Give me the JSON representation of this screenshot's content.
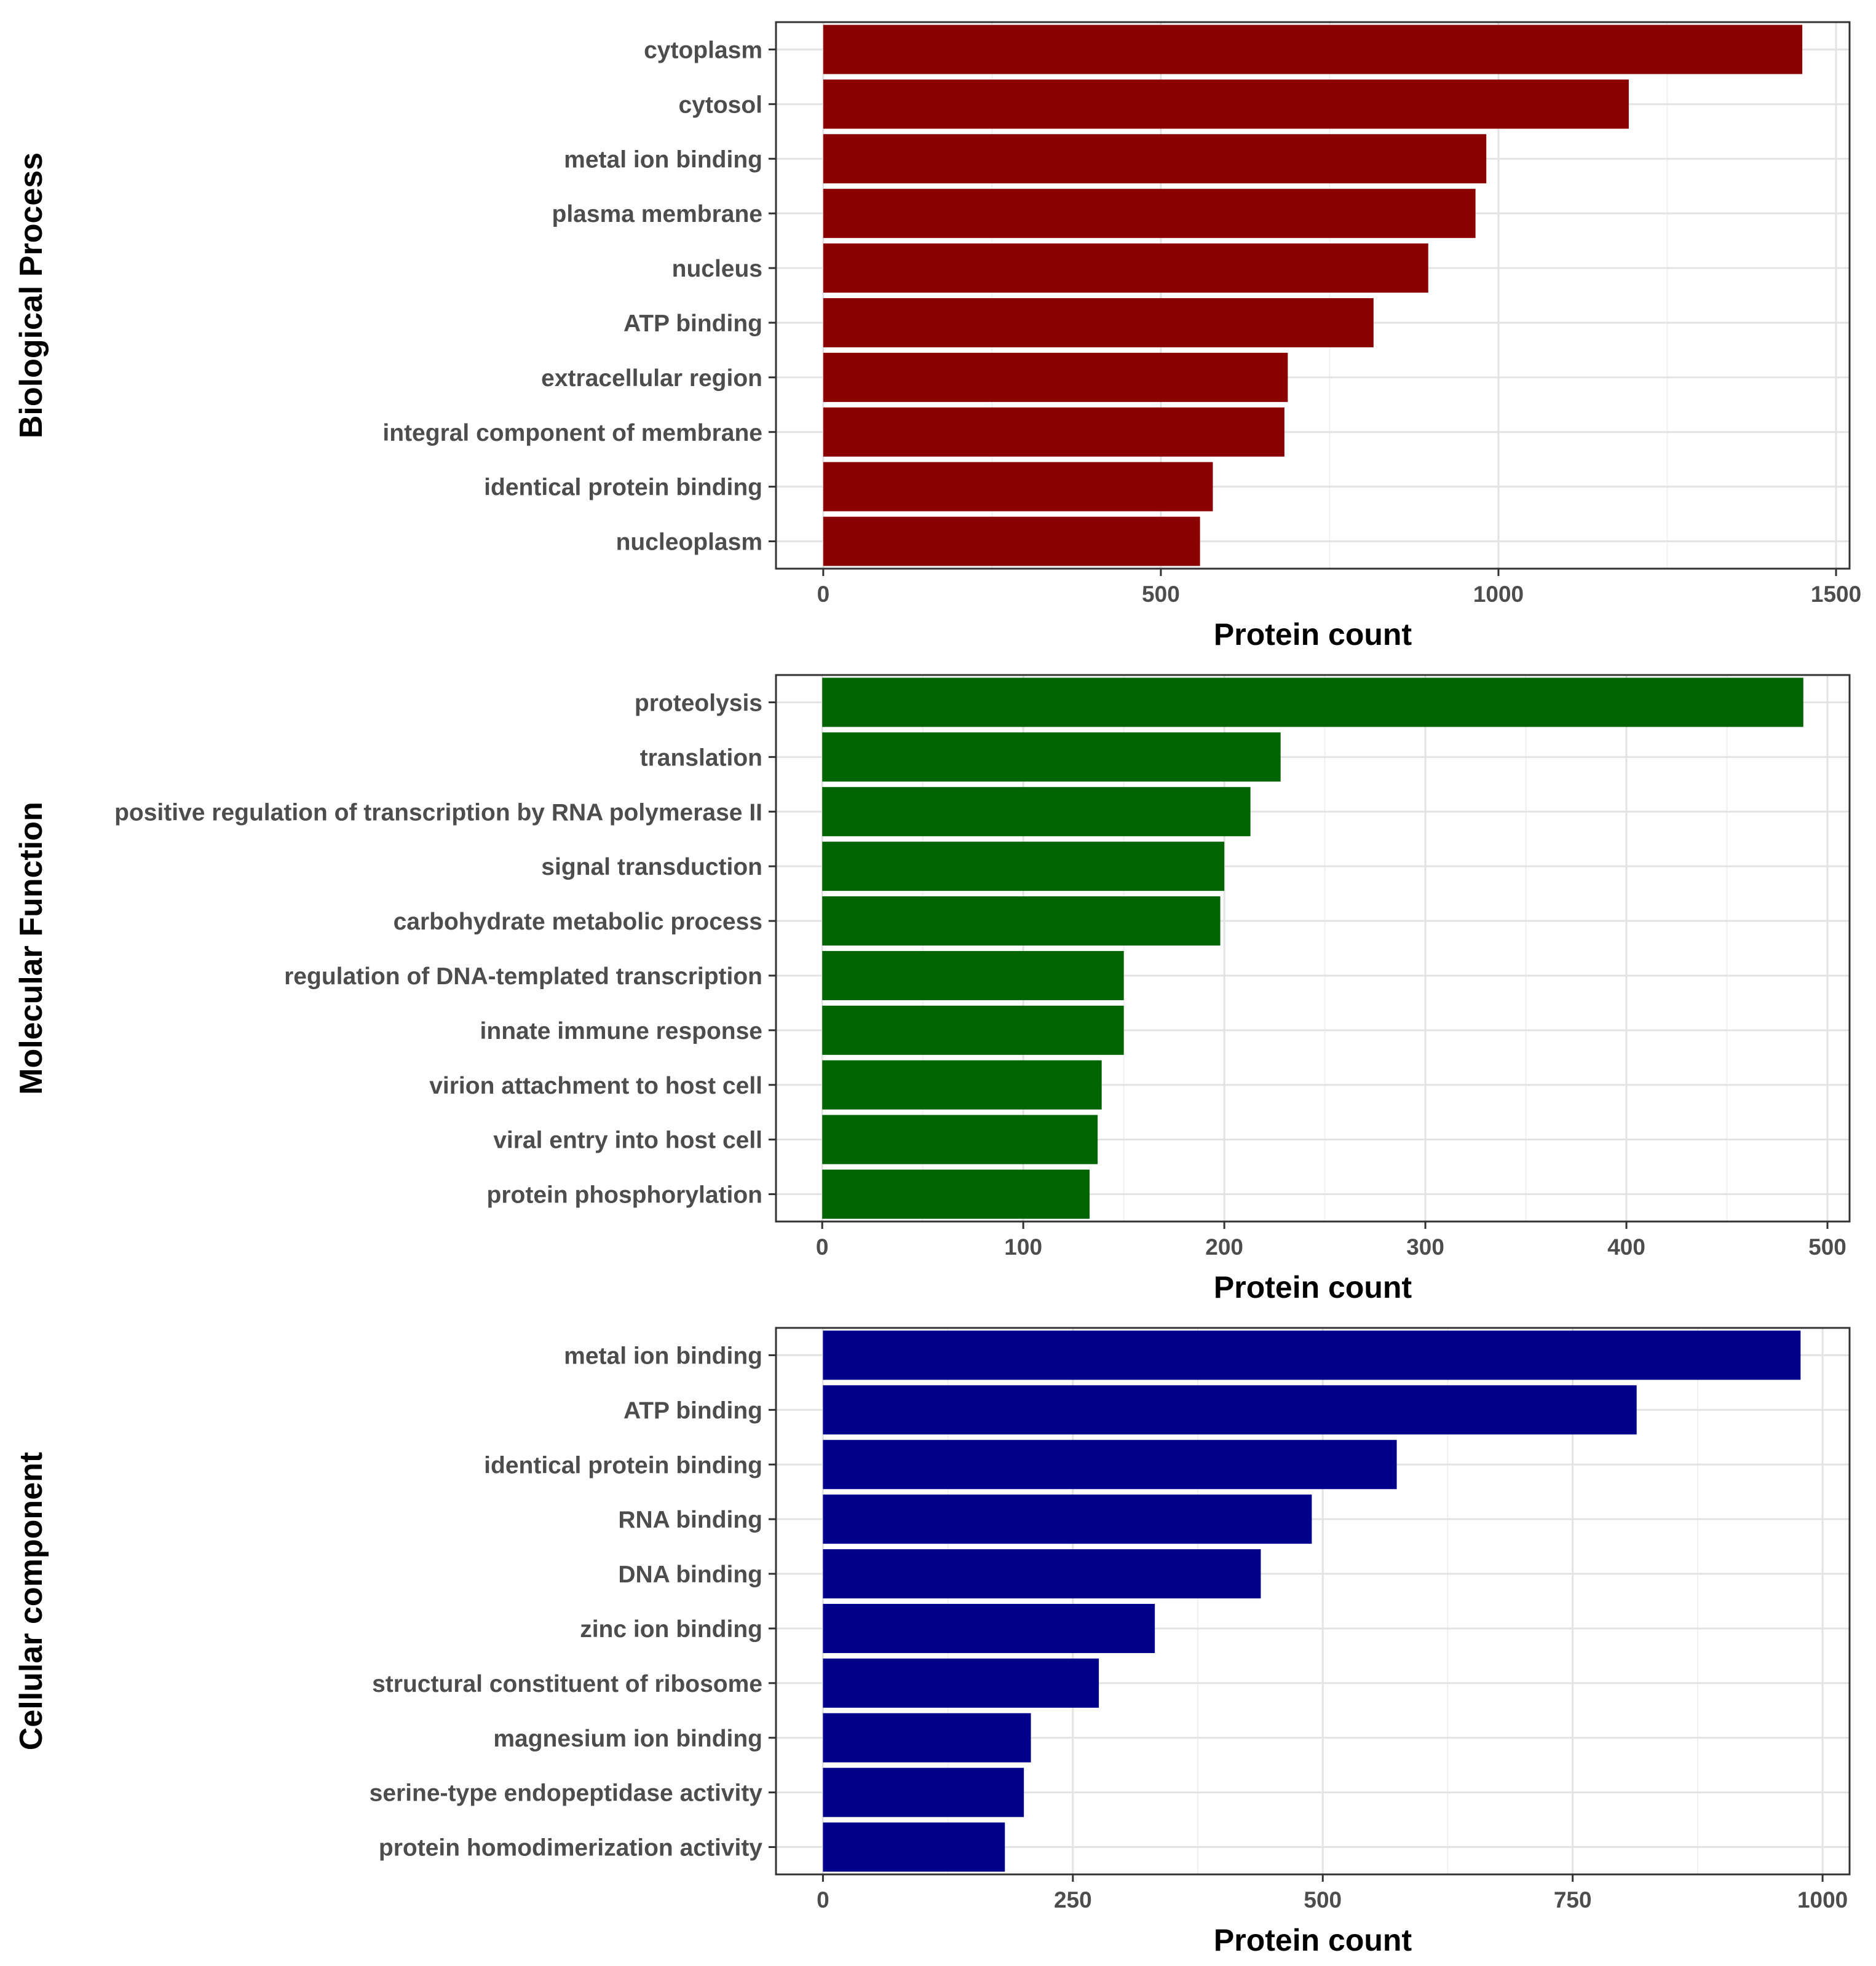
{
  "chart_data": [
    {
      "type": "bar",
      "orientation": "horizontal",
      "title": "Biological Process",
      "xlabel": "Protein count",
      "ylabel": "",
      "color": "#8b0000",
      "categories": [
        "cytoplasm",
        "cytosol",
        "metal ion binding",
        "plasma membrane",
        "nucleus",
        "ATP binding",
        "extracellular region",
        "integral component of membrane",
        "identical protein binding",
        "nucleoplasm"
      ],
      "values": [
        1450,
        1193,
        982,
        966,
        896,
        815,
        688,
        683,
        577,
        558
      ],
      "xlim": [
        -70,
        1520
      ],
      "xticks": [
        0,
        500,
        1000,
        1500
      ],
      "grid": true
    },
    {
      "type": "bar",
      "orientation": "horizontal",
      "title": "Molecular Function",
      "xlabel": "Protein count",
      "ylabel": "",
      "color": "#006400",
      "categories": [
        "proteolysis",
        "translation",
        "positive regulation of transcription by RNA polymerase II",
        "signal transduction",
        "carbohydrate metabolic process",
        "regulation of DNA-templated transcription",
        "innate immune response",
        "virion attachment to host cell",
        "viral entry into host cell",
        "protein phosphorylation"
      ],
      "values": [
        488,
        228,
        213,
        200,
        198,
        150,
        150,
        139,
        137,
        133
      ],
      "xlim": [
        -23,
        511
      ],
      "xticks": [
        0,
        100,
        200,
        300,
        400,
        500
      ],
      "grid": true
    },
    {
      "type": "bar",
      "orientation": "horizontal",
      "title": "Cellular component",
      "xlabel": "Protein count",
      "ylabel": "",
      "color": "#00008b",
      "categories": [
        "metal ion binding",
        "ATP binding",
        "identical protein binding",
        "RNA binding",
        "DNA binding",
        "zinc ion binding",
        "structural constituent of ribosome",
        "magnesium ion binding",
        "serine-type endopeptidase activity",
        "protein homodimerization activity"
      ],
      "values": [
        978,
        814,
        574,
        489,
        438,
        332,
        276,
        208,
        201,
        182
      ],
      "xlim": [
        -47,
        1027
      ],
      "xticks": [
        0,
        250,
        500,
        750,
        1000
      ],
      "grid": true
    }
  ]
}
